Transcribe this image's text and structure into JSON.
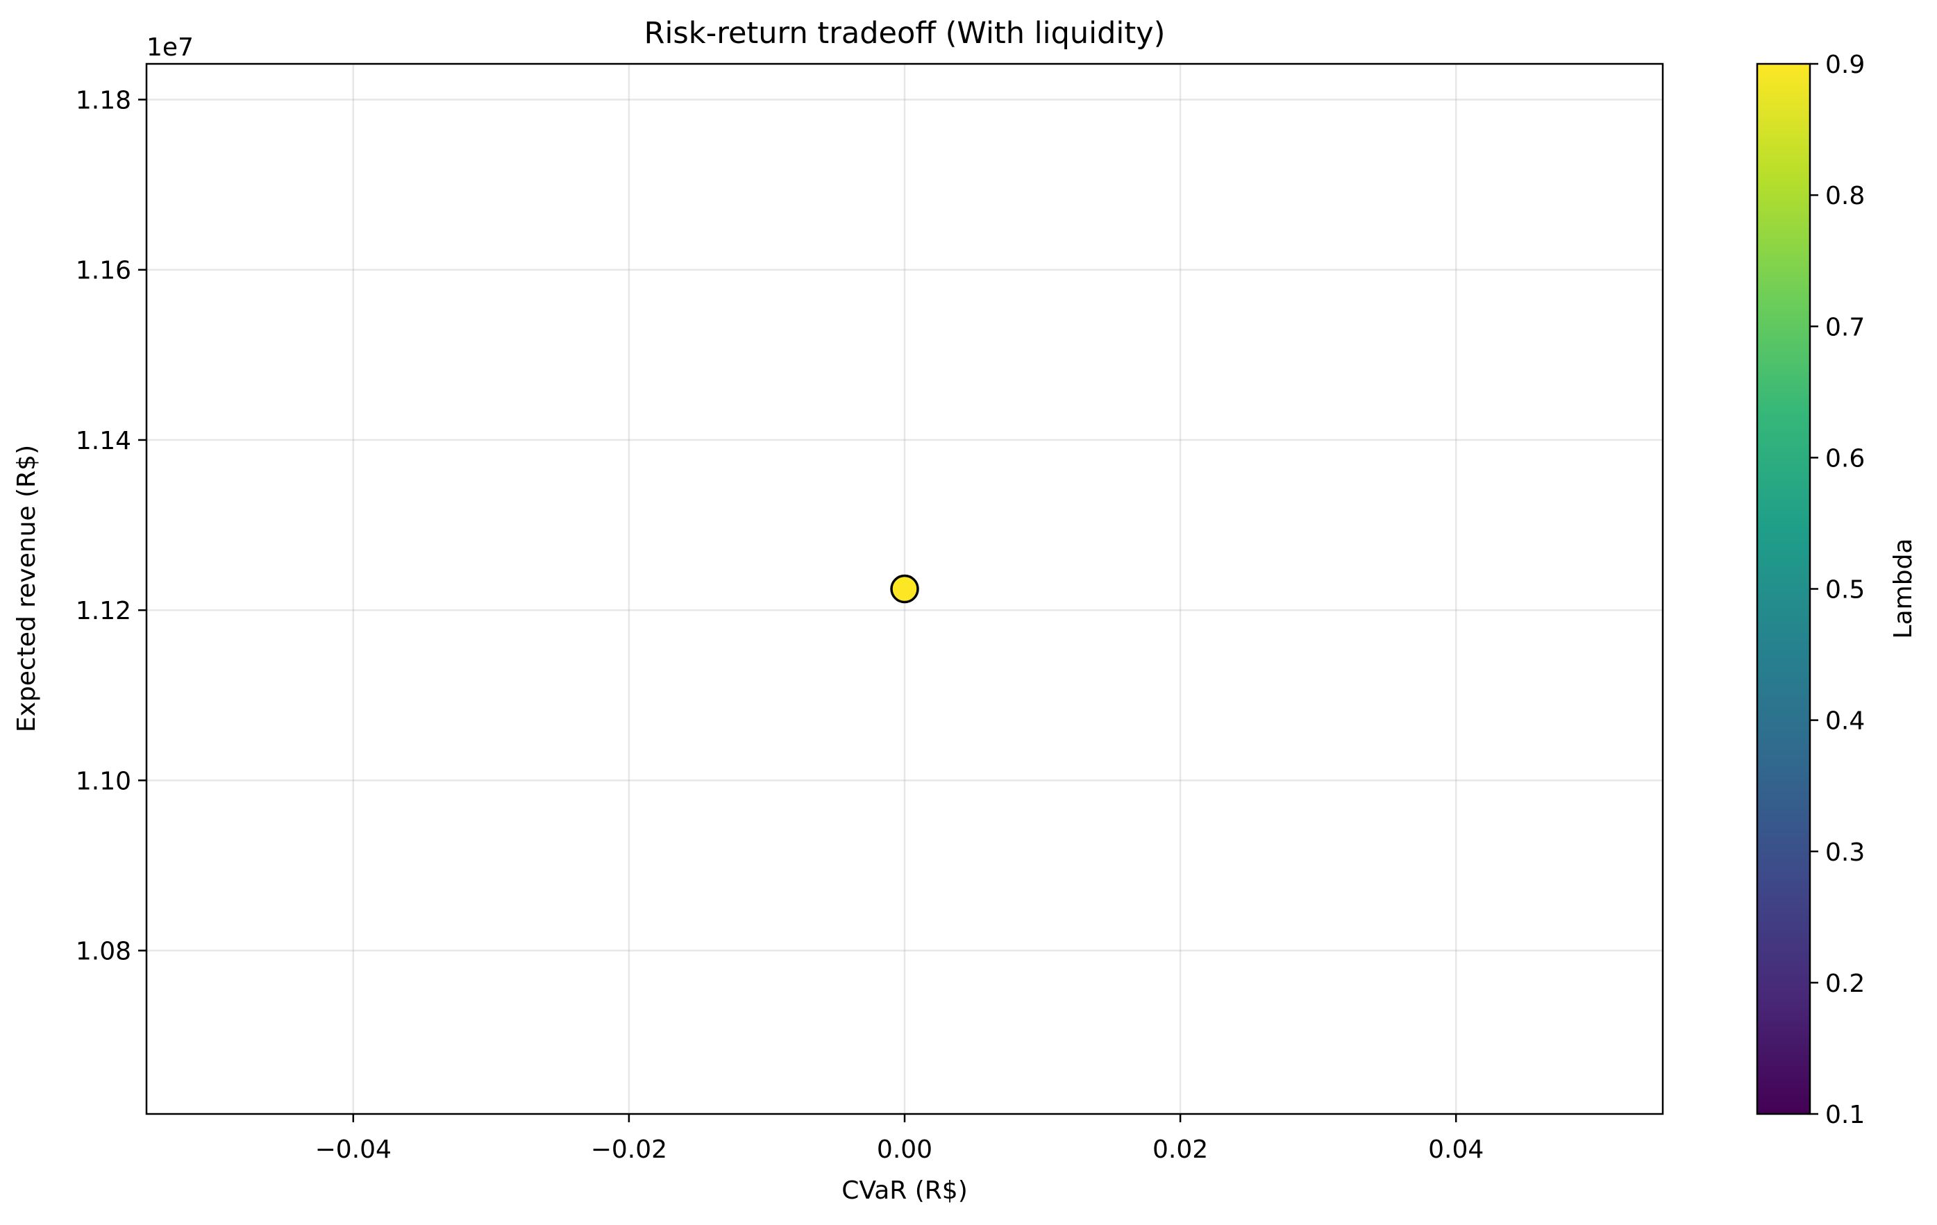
{
  "chart_data": {
    "type": "scatter",
    "title": "Risk-return tradeoff (With liquidity)",
    "xlabel": "CVaR (R$)",
    "ylabel": "Expected revenue (R$)",
    "y_offset_text": "1e7",
    "xlim": [
      -0.055,
      0.055
    ],
    "ylim": [
      1.0608,
      1.1842
    ],
    "y_scale_factor": 10000000,
    "x_ticks": [
      -0.04,
      -0.02,
      0.0,
      0.02,
      0.04
    ],
    "x_tick_labels": [
      "−0.04",
      "−0.02",
      "0.00",
      "0.02",
      "0.04"
    ],
    "y_ticks": [
      1.08,
      1.1,
      1.12,
      1.14,
      1.16,
      1.18
    ],
    "y_tick_labels": [
      "1.08",
      "1.10",
      "1.12",
      "1.14",
      "1.16",
      "1.18"
    ],
    "grid": true,
    "points": [
      {
        "x": 0.0,
        "y": 11225000,
        "lambda": 0.9,
        "color": "#fde725"
      }
    ],
    "colorbar": {
      "label": "Lambda",
      "colormap": "viridis",
      "range": [
        0.1,
        0.9
      ],
      "ticks": [
        0.1,
        0.2,
        0.3,
        0.4,
        0.5,
        0.6,
        0.7,
        0.8,
        0.9
      ],
      "tick_labels": [
        "0.1",
        "0.2",
        "0.3",
        "0.4",
        "0.5",
        "0.6",
        "0.7",
        "0.8",
        "0.9"
      ],
      "stops": [
        "#440154",
        "#482878",
        "#3e4989",
        "#31688e",
        "#26828e",
        "#1f9e89",
        "#35b779",
        "#6ece58",
        "#b5de2b",
        "#fde725"
      ]
    }
  }
}
